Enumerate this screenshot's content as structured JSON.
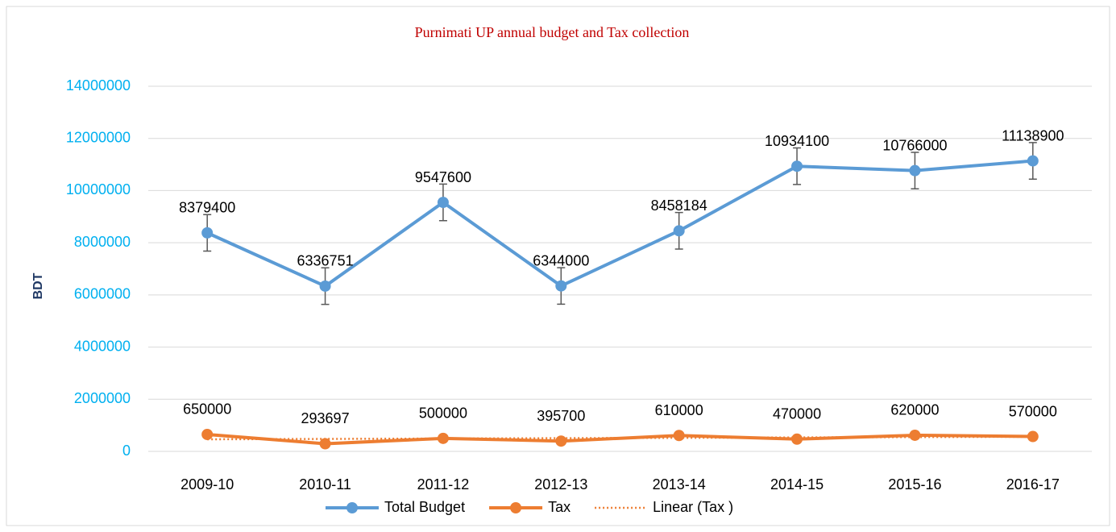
{
  "chart_data": {
    "type": "line",
    "title": "Purnimati UP annual budget and Tax collection",
    "y_label": "BDT",
    "categories": [
      "2009-10",
      "2010-11",
      "2011-12",
      "2012-13",
      "2013-14",
      "2014-15",
      "2015-16",
      "2016-17"
    ],
    "series": [
      {
        "name": "Total Budget",
        "color": "#5b9bd5",
        "values": [
          8379400,
          6336751,
          9547600,
          6344000,
          8458184,
          10934100,
          10766000,
          11138900
        ],
        "errors": [
          700000,
          700000,
          700000,
          700000,
          700000,
          700000,
          700000,
          700000
        ]
      },
      {
        "name": "Tax",
        "color": "#ed7d31",
        "values": [
          650000,
          293697,
          500000,
          395700,
          610000,
          470000,
          620000,
          570000
        ],
        "trendline": {
          "name": "Linear (Tax )",
          "color": "#ed7d31"
        }
      }
    ],
    "ylim": [
      0,
      14000000
    ],
    "yticks": [
      0,
      2000000,
      4000000,
      6000000,
      8000000,
      10000000,
      12000000,
      14000000
    ],
    "grid": true,
    "legend": "bottom"
  }
}
